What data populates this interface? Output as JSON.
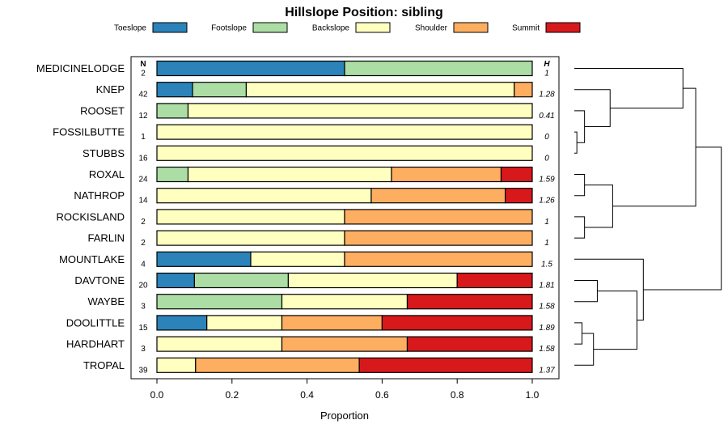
{
  "chart_data": {
    "type": "stacked-bar",
    "title": "Hillslope Position: sibling",
    "xlabel": "Proportion",
    "ylabel": "",
    "xlim": [
      0,
      1
    ],
    "xticks": [
      "0.0",
      "0.2",
      "0.4",
      "0.6",
      "0.8",
      "1.0"
    ],
    "n_header": "N",
    "h_header": "H",
    "series_names": [
      "Toeslope",
      "Footslope",
      "Backslope",
      "Shoulder",
      "Summit"
    ],
    "colors": {
      "Toeslope": "#2b83ba",
      "Footslope": "#abdda4",
      "Backslope": "#ffffbf",
      "Shoulder": "#fdae61",
      "Summit": "#d7191c"
    },
    "rows": [
      {
        "name": "MEDICINELODGE",
        "n": "2",
        "h": "1",
        "values": [
          0.5,
          0.5,
          0,
          0,
          0
        ]
      },
      {
        "name": "KNEP",
        "n": "42",
        "h": "1.28",
        "values": [
          0.095,
          0.143,
          0.714,
          0.048,
          0
        ]
      },
      {
        "name": "ROOSET",
        "n": "12",
        "h": "0.41",
        "values": [
          0,
          0.083,
          0.917,
          0,
          0
        ]
      },
      {
        "name": "FOSSILBUTTE",
        "n": "1",
        "h": "0",
        "values": [
          0,
          0,
          1,
          0,
          0
        ]
      },
      {
        "name": "STUBBS",
        "n": "16",
        "h": "0",
        "values": [
          0,
          0,
          1,
          0,
          0
        ]
      },
      {
        "name": "ROXAL",
        "n": "24",
        "h": "1.59",
        "values": [
          0,
          0.083,
          0.542,
          0.292,
          0.083
        ]
      },
      {
        "name": "NATHROP",
        "n": "14",
        "h": "1.26",
        "values": [
          0,
          0,
          0.571,
          0.357,
          0.072
        ]
      },
      {
        "name": "ROCKISLAND",
        "n": "2",
        "h": "1",
        "values": [
          0,
          0,
          0.5,
          0.5,
          0
        ]
      },
      {
        "name": "FARLIN",
        "n": "2",
        "h": "1",
        "values": [
          0,
          0,
          0.5,
          0.5,
          0
        ]
      },
      {
        "name": "MOUNTLAKE",
        "n": "4",
        "h": "1.5",
        "values": [
          0.25,
          0,
          0.25,
          0.5,
          0
        ]
      },
      {
        "name": "DAVTONE",
        "n": "20",
        "h": "1.81",
        "values": [
          0.1,
          0.25,
          0.45,
          0,
          0.2
        ]
      },
      {
        "name": "WAYBE",
        "n": "3",
        "h": "1.58",
        "values": [
          0,
          0.333,
          0.334,
          0,
          0.333
        ]
      },
      {
        "name": "DOOLITTLE",
        "n": "15",
        "h": "1.89",
        "values": [
          0.133,
          0,
          0.2,
          0.267,
          0.4
        ]
      },
      {
        "name": "HARDHART",
        "n": "3",
        "h": "1.58",
        "values": [
          0,
          0,
          0.333,
          0.334,
          0.333
        ]
      },
      {
        "name": "TROPAL",
        "n": "39",
        "h": "1.37",
        "values": [
          0,
          0,
          0.103,
          0.436,
          0.461
        ]
      }
    ],
    "dendrogram": {
      "description_free": true,
      "merges": [
        {
          "id": "A",
          "left": 3,
          "right": 4,
          "height": 0.04
        },
        {
          "id": "B",
          "left": 2,
          "right": "A",
          "height": 0.16
        },
        {
          "id": "C",
          "left": 1,
          "right": "B",
          "height": 0.56
        },
        {
          "id": "D",
          "left": 0,
          "right": "C",
          "height": 1.7
        },
        {
          "id": "E",
          "left": 5,
          "right": 6,
          "height": 0.16
        },
        {
          "id": "F",
          "left": 7,
          "right": 8,
          "height": 0.16
        },
        {
          "id": "G",
          "left": "E",
          "right": "F",
          "height": 0.6
        },
        {
          "id": "H",
          "left": "D",
          "right": "G",
          "height": 1.9
        },
        {
          "id": "I",
          "left": 10,
          "right": 11,
          "height": 0.36
        },
        {
          "id": "J",
          "left": 12,
          "right": 13,
          "height": 0.12
        },
        {
          "id": "K",
          "left": "J",
          "right": 14,
          "height": 0.3
        },
        {
          "id": "L",
          "left": "I",
          "right": "K",
          "height": 0.98
        },
        {
          "id": "M",
          "left": 9,
          "right": "L",
          "height": 1.08
        },
        {
          "id": "root",
          "left": "H",
          "right": "M",
          "height": 2.3
        }
      ]
    }
  }
}
